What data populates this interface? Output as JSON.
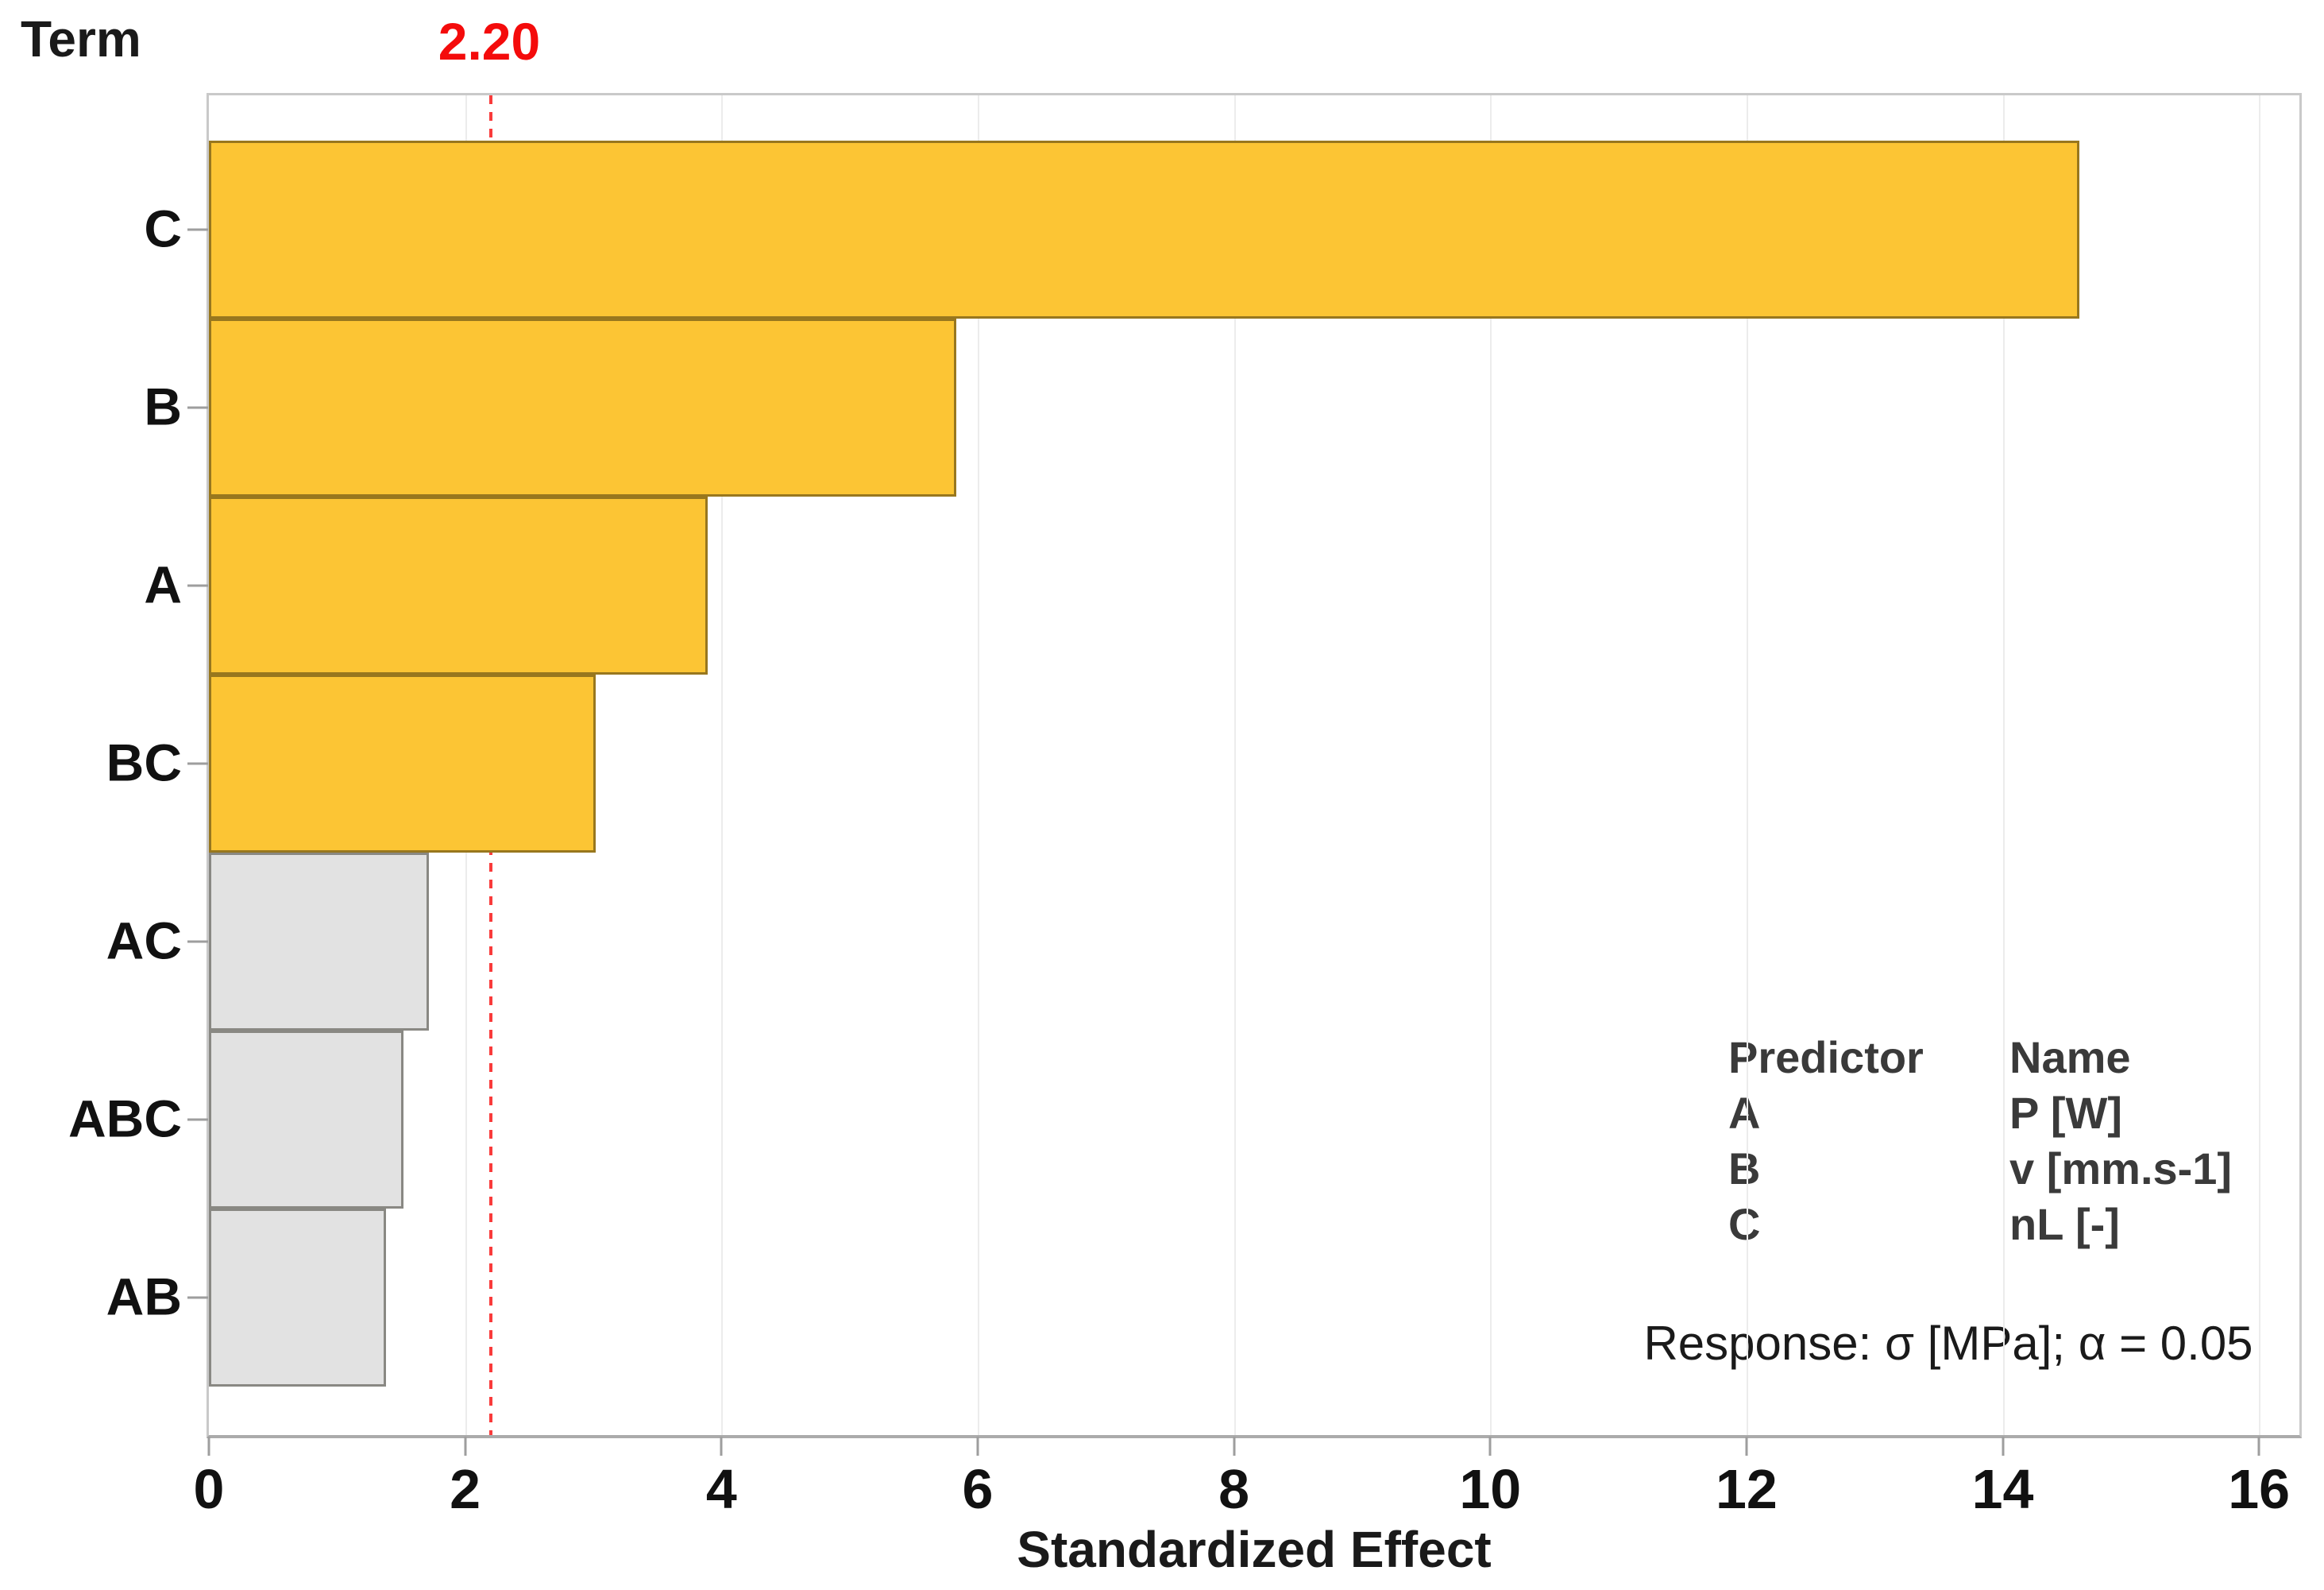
{
  "chart_data": {
    "type": "bar",
    "orientation": "horizontal",
    "term_axis_label": "Term",
    "xlabel": "Standardized Effect",
    "categories": [
      "C",
      "B",
      "A",
      "BC",
      "AC",
      "ABC",
      "AB"
    ],
    "values": [
      14.6,
      5.83,
      3.89,
      3.02,
      1.72,
      1.52,
      1.38
    ],
    "significant": [
      true,
      true,
      true,
      true,
      false,
      false,
      false
    ],
    "reference_line": {
      "value": 2.2,
      "label": "2.20"
    },
    "xlim": [
      0,
      16
    ],
    "xticks": [
      0,
      2,
      4,
      6,
      8,
      10,
      12,
      14,
      16
    ],
    "grid": "vertical gridlines at x ticks",
    "legend_position": "bottom-right inside plot",
    "colors": {
      "significant_fill": "#fcc534",
      "not_significant_fill": "#e2e2e2",
      "reference_line": "#f93b3b",
      "reference_label": "#f40b0b"
    },
    "legend": {
      "headers": [
        "Predictor",
        "Name"
      ],
      "rows": [
        [
          "A",
          "P [W]"
        ],
        [
          "B",
          "v [mm.s-1]"
        ],
        [
          "C",
          "nL [-]"
        ]
      ]
    },
    "footnote": "Response: σ [MPa]; α = 0.05"
  }
}
